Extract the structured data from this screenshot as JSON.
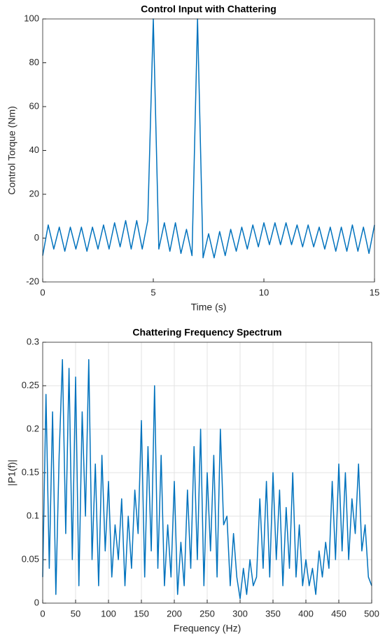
{
  "chart_data": [
    {
      "type": "line",
      "title": "Control Input with Chattering",
      "xlabel": "Time (s)",
      "ylabel": "Control Torque (Nm)",
      "color": "#0072bd",
      "grid": false,
      "xlim": [
        0,
        15
      ],
      "xticks": [
        0,
        5,
        10,
        15
      ],
      "ylim": [
        -20,
        100
      ],
      "yticks": [
        -20,
        0,
        20,
        40,
        60,
        80,
        100
      ],
      "x": [
        0,
        0.25,
        0.5,
        0.75,
        1,
        1.25,
        1.5,
        1.75,
        2,
        2.25,
        2.5,
        2.75,
        3,
        3.25,
        3.5,
        3.75,
        4,
        4.25,
        4.5,
        4.75,
        5,
        5.25,
        5.5,
        5.75,
        6,
        6.25,
        6.5,
        6.75,
        7,
        7.25,
        7.5,
        7.75,
        8,
        8.25,
        8.5,
        8.75,
        9,
        9.25,
        9.5,
        9.75,
        10,
        10.25,
        10.5,
        10.75,
        11,
        11.25,
        11.5,
        11.75,
        12,
        12.25,
        12.5,
        12.75,
        13,
        13.25,
        13.5,
        13.75,
        14,
        14.25,
        14.5,
        14.75,
        15
      ],
      "values": [
        -8,
        6,
        -5,
        5,
        -6,
        5,
        -5,
        5,
        -6,
        5,
        -5,
        6,
        -5,
        7,
        -4,
        8,
        -5,
        8,
        -5,
        8,
        100,
        -5,
        7,
        -6,
        7,
        -7,
        4,
        -8,
        100,
        -9,
        2,
        -9,
        3,
        -8,
        4,
        -6,
        5,
        -5,
        6,
        -4,
        7,
        -3,
        7,
        -3,
        7,
        -3,
        6,
        -4,
        6,
        -4,
        5,
        -5,
        5,
        -6,
        5,
        -6,
        6,
        -6,
        5,
        -7,
        6
      ]
    },
    {
      "type": "line",
      "title": "Chattering Frequency Spectrum",
      "xlabel": "Frequency (Hz)",
      "ylabel": "|P1(f)|",
      "color": "#0072bd",
      "grid": true,
      "xlim": [
        0,
        500
      ],
      "xticks": [
        0,
        50,
        100,
        150,
        200,
        250,
        300,
        350,
        400,
        450,
        500
      ],
      "ylim": [
        0,
        0.3
      ],
      "yticks": [
        0,
        0.05,
        0.1,
        0.15,
        0.2,
        0.25,
        0.3
      ],
      "x": [
        0,
        5,
        10,
        15,
        20,
        25,
        30,
        35,
        40,
        45,
        50,
        55,
        60,
        65,
        70,
        75,
        80,
        85,
        90,
        95,
        100,
        105,
        110,
        115,
        120,
        125,
        130,
        135,
        140,
        145,
        150,
        155,
        160,
        165,
        170,
        175,
        180,
        185,
        190,
        195,
        200,
        205,
        210,
        215,
        220,
        225,
        230,
        235,
        240,
        245,
        250,
        255,
        260,
        265,
        270,
        275,
        280,
        285,
        290,
        295,
        300,
        305,
        310,
        315,
        320,
        325,
        330,
        335,
        340,
        345,
        350,
        355,
        360,
        365,
        370,
        375,
        380,
        385,
        390,
        395,
        400,
        405,
        410,
        415,
        420,
        425,
        430,
        435,
        440,
        445,
        450,
        455,
        460,
        465,
        470,
        475,
        480,
        485,
        490,
        495,
        500
      ],
      "values": [
        0.03,
        0.24,
        0.04,
        0.22,
        0.01,
        0.17,
        0.28,
        0.08,
        0.27,
        0.05,
        0.26,
        0.02,
        0.22,
        0.1,
        0.28,
        0.05,
        0.16,
        0.02,
        0.17,
        0.06,
        0.14,
        0.03,
        0.09,
        0.05,
        0.12,
        0.02,
        0.1,
        0.04,
        0.13,
        0.08,
        0.21,
        0.03,
        0.18,
        0.06,
        0.25,
        0.04,
        0.17,
        0.02,
        0.09,
        0.03,
        0.14,
        0.01,
        0.07,
        0.02,
        0.13,
        0.04,
        0.18,
        0.05,
        0.2,
        0.02,
        0.15,
        0.06,
        0.17,
        0.03,
        0.2,
        0.09,
        0.1,
        0.02,
        0.08,
        0.03,
        0.005,
        0.04,
        0.01,
        0.05,
        0.02,
        0.03,
        0.12,
        0.04,
        0.14,
        0.03,
        0.15,
        0.05,
        0.13,
        0.02,
        0.11,
        0.04,
        0.15,
        0.03,
        0.09,
        0.02,
        0.05,
        0.02,
        0.04,
        0.01,
        0.06,
        0.03,
        0.07,
        0.04,
        0.14,
        0.05,
        0.16,
        0.06,
        0.15,
        0.05,
        0.12,
        0.08,
        0.16,
        0.06,
        0.09,
        0.03,
        0.02
      ]
    }
  ]
}
